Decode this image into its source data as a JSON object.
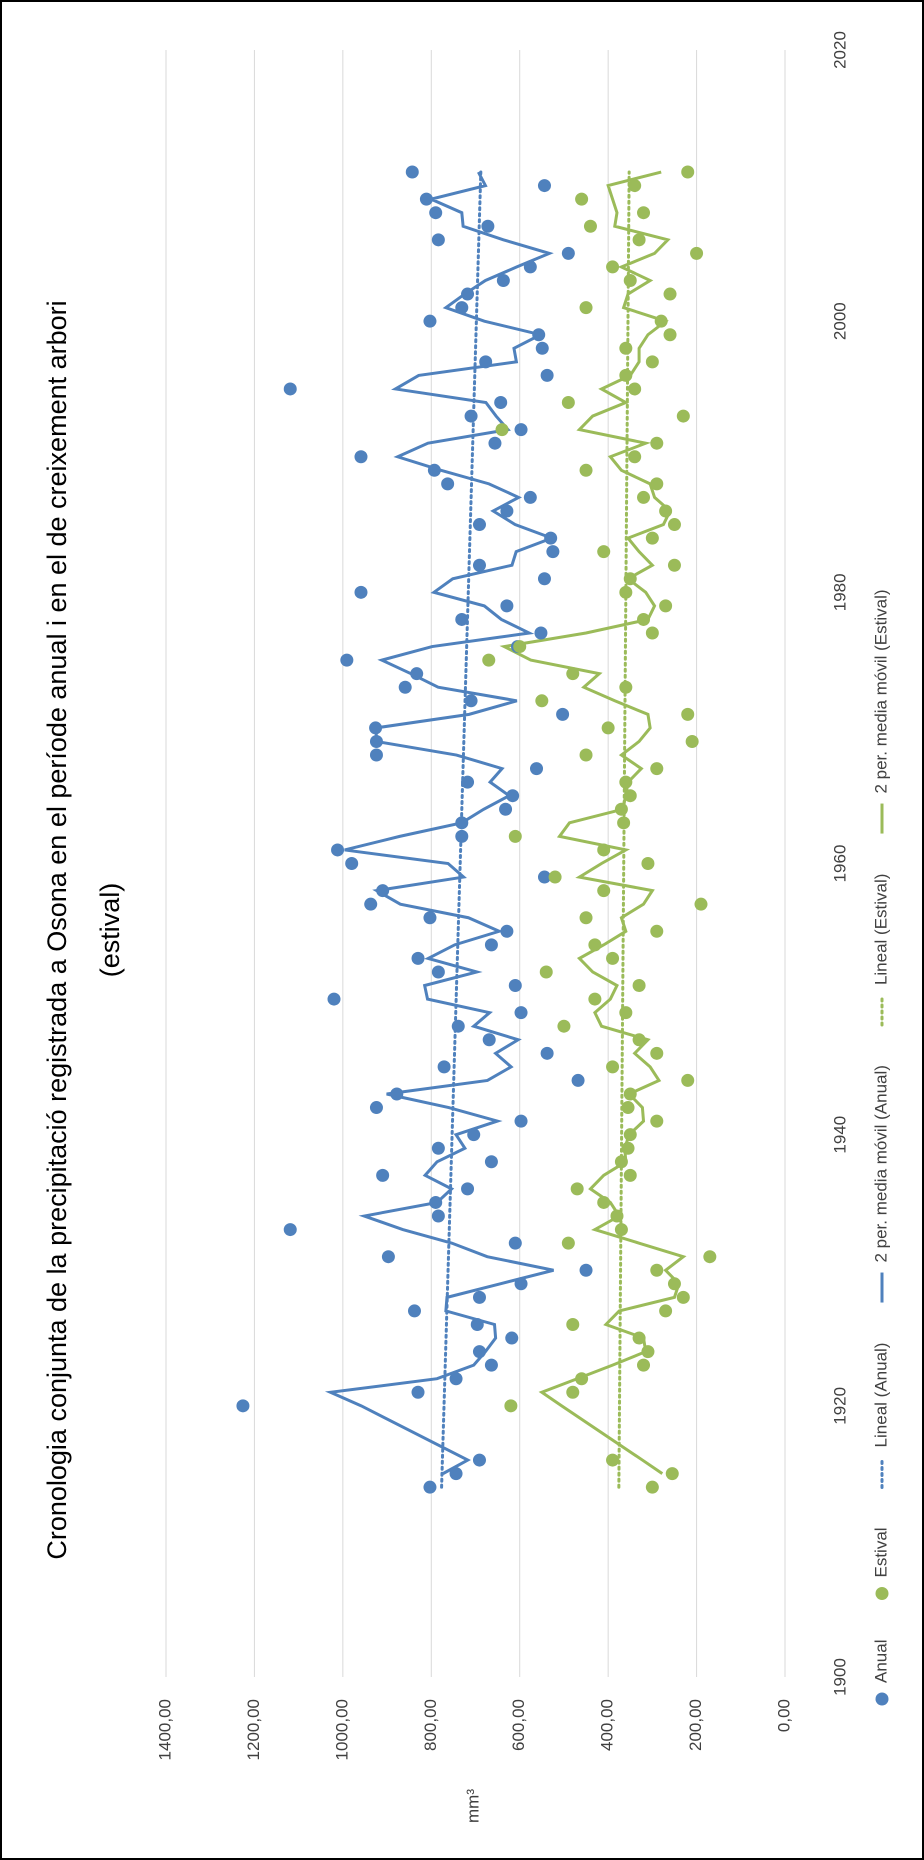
{
  "chart_data": {
    "type": "scatter",
    "title": [
      "Cronologia conjunta de la precipitació registrada a Osona en el període anual i en el de creixement arbori",
      "(estival)"
    ],
    "y_label": "mm³",
    "x": [
      1914,
      1915,
      1916,
      1920,
      1921,
      1922,
      1923,
      1924,
      1925,
      1926,
      1927,
      1928,
      1929,
      1930,
      1931,
      1932,
      1933,
      1934,
      1935,
      1936,
      1937,
      1938,
      1939,
      1940,
      1941,
      1942,
      1943,
      1944,
      1945,
      1946,
      1947,
      1948,
      1949,
      1950,
      1951,
      1952,
      1953,
      1954,
      1955,
      1956,
      1957,
      1958,
      1959,
      1960,
      1961,
      1962,
      1963,
      1964,
      1965,
      1966,
      1967,
      1968,
      1969,
      1970,
      1971,
      1972,
      1973,
      1974,
      1975,
      1976,
      1977,
      1978,
      1979,
      1980,
      1981,
      1982,
      1983,
      1984,
      1985,
      1986,
      1987,
      1988,
      1989,
      1990,
      1991,
      1992,
      1993,
      1994,
      1995,
      1996,
      1997,
      1998,
      1999,
      2000,
      2001,
      2002,
      2003,
      2004,
      2005,
      2006,
      2007,
      2008,
      2009,
      2010,
      2011
    ],
    "series": [
      {
        "name": "Anual",
        "color": "#4f81bd",
        "values": [
          803,
          744,
          691,
          1226,
          830,
          744,
          664,
          691,
          618,
          696,
          838,
          691,
          597,
          450,
          897,
          610,
          1119,
          784,
          790,
          718,
          910,
          664,
          784,
          704,
          597,
          924,
          878,
          468,
          771,
          538,
          669,
          739,
          597,
          1020,
          610,
          784,
          830,
          664,
          629,
          803,
          937,
          910,
          544,
          980,
          1012,
          731,
          731,
          632,
          616,
          718,
          562,
          924,
          924,
          926,
          503,
          710,
          859,
          833,
          991,
          605,
          552,
          731,
          629,
          959,
          544,
          691,
          525,
          530,
          691,
          629,
          576,
          763,
          793,
          959,
          656,
          597,
          710,
          643,
          1119,
          538,
          677,
          549,
          557,
          803,
          731,
          718,
          637,
          576,
          490,
          784,
          672,
          790,
          811,
          544,
          843
        ],
        "trendlines": [
          {
            "name": "Lineal (Anual)",
            "type": "linear"
          },
          {
            "name": "2 per. media móvil (Anual)",
            "type": "moving_average",
            "period": 2
          }
        ]
      },
      {
        "name": "Estival",
        "color": "#9bbb59",
        "values": [
          300,
          255,
          390,
          620,
          480,
          460,
          320,
          310,
          330,
          480,
          270,
          230,
          250,
          290,
          170,
          490,
          370,
          380,
          410,
          470,
          350,
          370,
          355,
          350,
          290,
          355,
          350,
          220,
          390,
          290,
          330,
          500,
          360,
          430,
          330,
          540,
          390,
          430,
          290,
          450,
          190,
          410,
          520,
          310,
          410,
          610,
          365,
          370,
          350,
          360,
          290,
          450,
          210,
          400,
          220,
          550,
          360,
          480,
          670,
          600,
          300,
          320,
          270,
          360,
          350,
          250,
          410,
          300,
          250,
          270,
          320,
          290,
          450,
          340,
          290,
          640,
          230,
          490,
          340,
          360,
          300,
          360,
          260,
          280,
          450,
          260,
          350,
          390,
          200,
          330,
          440,
          320,
          460,
          340,
          220
        ],
        "trendlines": [
          {
            "name": "Lineal (Estival)",
            "type": "linear"
          },
          {
            "name": "2 per. media móvil (Estival)",
            "type": "moving_average",
            "period": 2
          }
        ]
      }
    ],
    "xlim": [
      1900,
      2020
    ],
    "xticks": [
      1900,
      1920,
      1940,
      1960,
      1980,
      2000,
      2020
    ],
    "ylim": [
      0,
      1400
    ],
    "yticks": [
      {
        "value": 0,
        "label": "0,00"
      },
      {
        "value": 200,
        "label": "200,00"
      },
      {
        "value": 400,
        "label": "400,00"
      },
      {
        "value": 600,
        "label": "600,00"
      },
      {
        "value": 800,
        "label": "800,00"
      },
      {
        "value": 1000,
        "label": "1000,00"
      },
      {
        "value": 1200,
        "label": "1200,00"
      },
      {
        "value": 1400,
        "label": "1400,00"
      }
    ],
    "grid": true,
    "legend": "bottom",
    "rotation": -90
  }
}
